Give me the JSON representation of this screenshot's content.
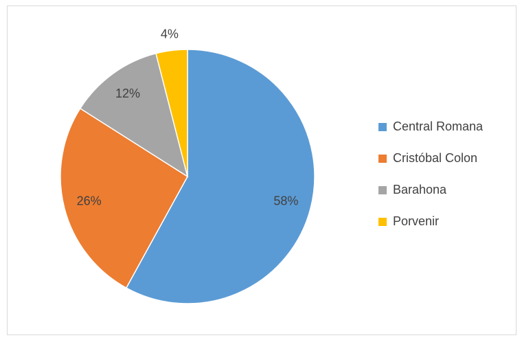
{
  "chart_data": {
    "type": "pie",
    "categories": [
      "Central Romana",
      "Cristóbal Colon",
      "Barahona",
      "Porvenir"
    ],
    "values": [
      58,
      26,
      12,
      4
    ],
    "value_labels": [
      "58%",
      "26%",
      "12%",
      "4%"
    ],
    "colors": [
      "#5b9bd5",
      "#ed7d31",
      "#a5a5a5",
      "#ffc000"
    ],
    "legend": "right"
  }
}
